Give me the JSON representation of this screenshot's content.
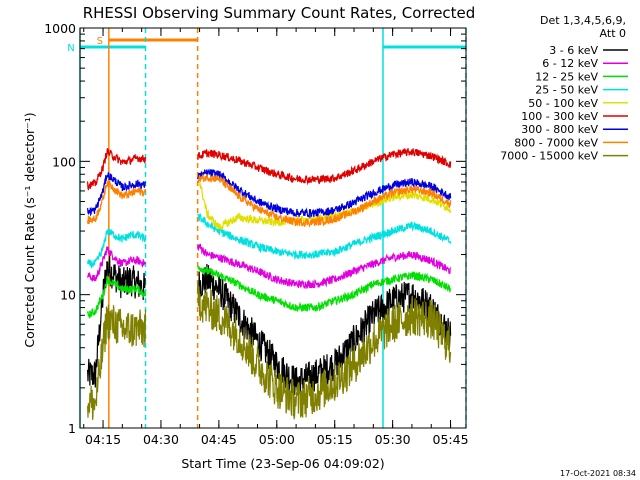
{
  "title": "RHESSI Observing Summary Count Rates, Corrected",
  "footer_date": "17-Oct-2021 08:34",
  "legend_header": [
    "Det 1,3,4,5,6,9,",
    "Att 0"
  ],
  "chart_data": {
    "type": "line",
    "title": "RHESSI Observing Summary Count Rates, Corrected",
    "xlabel": "Start Time (23-Sep-06 04:09:02)",
    "ylabel": "Corrected Count Rate (s⁻¹ detector⁻¹)",
    "yscale": "log",
    "ylim": [
      1,
      1000
    ],
    "xlim": [
      "04:09:02",
      "05:49:00"
    ],
    "x_ticks": [
      "04:15",
      "04:30",
      "04:45",
      "05:00",
      "05:15",
      "05:30",
      "05:45"
    ],
    "y_ticks": [
      "1",
      "10",
      "100",
      "1000"
    ],
    "grid": false,
    "legend_position": "right",
    "data_gap": [
      "04:26:00",
      "04:39:30"
    ],
    "series": [
      {
        "name": "3 - 6 keV",
        "color": "#000000",
        "points": [
          [
            "04:11",
            2.5
          ],
          [
            "04:13",
            2.5
          ],
          [
            "04:15",
            10
          ],
          [
            "04:16",
            16
          ],
          [
            "04:18",
            14
          ],
          [
            "04:20",
            12
          ],
          [
            "04:22",
            13
          ],
          [
            "04:24",
            12
          ],
          [
            "04:26",
            11
          ],
          [
            "04:40",
            12
          ],
          [
            "04:42",
            13
          ],
          [
            "04:45",
            11
          ],
          [
            "04:50",
            7
          ],
          [
            "04:55",
            4.5
          ],
          [
            "05:00",
            3
          ],
          [
            "05:05",
            2.2
          ],
          [
            "05:10",
            2.5
          ],
          [
            "05:15",
            3
          ],
          [
            "05:20",
            4.5
          ],
          [
            "05:25",
            7
          ],
          [
            "05:30",
            9
          ],
          [
            "05:35",
            10
          ],
          [
            "05:40",
            8
          ],
          [
            "05:45",
            5
          ]
        ]
      },
      {
        "name": "6 - 12 keV",
        "color": "#e000e0",
        "points": [
          [
            "04:11",
            14
          ],
          [
            "04:13",
            13
          ],
          [
            "04:15",
            18
          ],
          [
            "04:16",
            22
          ],
          [
            "04:18",
            19
          ],
          [
            "04:20",
            17
          ],
          [
            "04:22",
            18
          ],
          [
            "04:24",
            18
          ],
          [
            "04:26",
            17
          ],
          [
            "04:40",
            23
          ],
          [
            "04:42",
            20
          ],
          [
            "04:45",
            19
          ],
          [
            "04:50",
            17
          ],
          [
            "04:55",
            15
          ],
          [
            "05:00",
            13
          ],
          [
            "05:05",
            12
          ],
          [
            "05:10",
            12
          ],
          [
            "05:15",
            13
          ],
          [
            "05:20",
            15
          ],
          [
            "05:25",
            17
          ],
          [
            "05:30",
            19
          ],
          [
            "05:35",
            20
          ],
          [
            "05:40",
            18
          ],
          [
            "05:45",
            15
          ]
        ]
      },
      {
        "name": "12 - 25 keV",
        "color": "#00e000",
        "points": [
          [
            "04:11",
            7
          ],
          [
            "04:13",
            7.5
          ],
          [
            "04:15",
            10
          ],
          [
            "04:16",
            13
          ],
          [
            "04:18",
            12
          ],
          [
            "04:20",
            11
          ],
          [
            "04:22",
            11
          ],
          [
            "04:24",
            11
          ],
          [
            "04:26",
            10
          ],
          [
            "04:40",
            16
          ],
          [
            "04:42",
            15
          ],
          [
            "04:45",
            14
          ],
          [
            "04:50",
            12
          ],
          [
            "04:55",
            10
          ],
          [
            "05:00",
            9
          ],
          [
            "05:05",
            8
          ],
          [
            "05:10",
            8
          ],
          [
            "05:15",
            9
          ],
          [
            "05:20",
            10
          ],
          [
            "05:25",
            12
          ],
          [
            "05:30",
            13
          ],
          [
            "05:35",
            14
          ],
          [
            "05:40",
            13
          ],
          [
            "05:45",
            11
          ]
        ]
      },
      {
        "name": "25 - 50 keV",
        "color": "#00e0e0",
        "points": [
          [
            "04:11",
            17
          ],
          [
            "04:13",
            17
          ],
          [
            "04:15",
            22
          ],
          [
            "04:16",
            30
          ],
          [
            "04:18",
            28
          ],
          [
            "04:20",
            26
          ],
          [
            "04:22",
            28
          ],
          [
            "04:24",
            28
          ],
          [
            "04:26",
            26
          ],
          [
            "04:40",
            38
          ],
          [
            "04:42",
            34
          ],
          [
            "04:45",
            30
          ],
          [
            "04:50",
            26
          ],
          [
            "04:55",
            23
          ],
          [
            "05:00",
            21
          ],
          [
            "05:05",
            20
          ],
          [
            "05:10",
            20
          ],
          [
            "05:15",
            21
          ],
          [
            "05:20",
            24
          ],
          [
            "05:25",
            27
          ],
          [
            "05:30",
            30
          ],
          [
            "05:35",
            33
          ],
          [
            "05:40",
            30
          ],
          [
            "05:45",
            25
          ]
        ]
      },
      {
        "name": "50 - 100 keV",
        "color": "#e0e000",
        "points": [
          [
            "04:40",
            70
          ],
          [
            "04:42",
            40
          ],
          [
            "04:45",
            32
          ],
          [
            "04:50",
            38
          ],
          [
            "04:55",
            36
          ],
          [
            "05:00",
            35
          ],
          [
            "05:05",
            36
          ],
          [
            "05:10",
            37
          ],
          [
            "05:15",
            39
          ],
          [
            "05:20",
            42
          ],
          [
            "05:25",
            48
          ],
          [
            "05:30",
            54
          ],
          [
            "05:35",
            56
          ],
          [
            "05:40",
            52
          ],
          [
            "05:45",
            44
          ]
        ]
      },
      {
        "name": "100 - 300 keV",
        "color": "#e00000",
        "points": [
          [
            "04:11",
            66
          ],
          [
            "04:13",
            68
          ],
          [
            "04:15",
            90
          ],
          [
            "04:16",
            118
          ],
          [
            "04:18",
            108
          ],
          [
            "04:20",
            98
          ],
          [
            "04:22",
            102
          ],
          [
            "04:24",
            106
          ],
          [
            "04:26",
            104
          ],
          [
            "04:40",
            110
          ],
          [
            "04:42",
            115
          ],
          [
            "04:45",
            112
          ],
          [
            "04:50",
            102
          ],
          [
            "04:55",
            90
          ],
          [
            "05:00",
            80
          ],
          [
            "05:05",
            74
          ],
          [
            "05:10",
            73
          ],
          [
            "05:15",
            75
          ],
          [
            "05:20",
            85
          ],
          [
            "05:25",
            100
          ],
          [
            "05:30",
            113
          ],
          [
            "05:35",
            118
          ],
          [
            "05:40",
            110
          ],
          [
            "05:45",
            95
          ]
        ]
      },
      {
        "name": "300 - 800 keV",
        "color": "#0000e0",
        "points": [
          [
            "04:11",
            42
          ],
          [
            "04:13",
            43
          ],
          [
            "04:15",
            60
          ],
          [
            "04:16",
            80
          ],
          [
            "04:18",
            72
          ],
          [
            "04:20",
            64
          ],
          [
            "04:22",
            66
          ],
          [
            "04:24",
            68
          ],
          [
            "04:26",
            66
          ],
          [
            "04:40",
            78
          ],
          [
            "04:42",
            82
          ],
          [
            "04:45",
            80
          ],
          [
            "04:50",
            62
          ],
          [
            "04:55",
            50
          ],
          [
            "05:00",
            44
          ],
          [
            "05:05",
            41
          ],
          [
            "05:10",
            41
          ],
          [
            "05:15",
            43
          ],
          [
            "05:20",
            49
          ],
          [
            "05:25",
            58
          ],
          [
            "05:30",
            66
          ],
          [
            "05:35",
            70
          ],
          [
            "05:40",
            65
          ],
          [
            "05:45",
            54
          ]
        ]
      },
      {
        "name": "800 - 7000 keV",
        "color": "#ff8000",
        "points": [
          [
            "04:11",
            36
          ],
          [
            "04:13",
            37
          ],
          [
            "04:15",
            52
          ],
          [
            "04:16",
            70
          ],
          [
            "04:18",
            62
          ],
          [
            "04:20",
            55
          ],
          [
            "04:22",
            57
          ],
          [
            "04:24",
            60
          ],
          [
            "04:26",
            58
          ],
          [
            "04:40",
            74
          ],
          [
            "04:42",
            76
          ],
          [
            "04:45",
            74
          ],
          [
            "04:50",
            55
          ],
          [
            "04:55",
            44
          ],
          [
            "05:00",
            38
          ],
          [
            "05:05",
            35
          ],
          [
            "05:10",
            35
          ],
          [
            "05:15",
            37
          ],
          [
            "05:20",
            42
          ],
          [
            "05:25",
            50
          ],
          [
            "05:30",
            58
          ],
          [
            "05:35",
            62
          ],
          [
            "05:40",
            58
          ],
          [
            "05:45",
            48
          ]
        ]
      },
      {
        "name": "7000 - 15000 keV",
        "color": "#808000",
        "points": [
          [
            "04:11",
            1.6
          ],
          [
            "04:13",
            1.5
          ],
          [
            "04:15",
            4
          ],
          [
            "04:16",
            6.5
          ],
          [
            "04:18",
            6
          ],
          [
            "04:20",
            5.5
          ],
          [
            "04:22",
            5.5
          ],
          [
            "04:24",
            5.5
          ],
          [
            "04:26",
            5.5
          ],
          [
            "04:40",
            9
          ],
          [
            "04:42",
            8
          ],
          [
            "04:45",
            7
          ],
          [
            "04:50",
            5
          ],
          [
            "04:55",
            3
          ],
          [
            "05:00",
            2
          ],
          [
            "05:05",
            1.6
          ],
          [
            "05:10",
            1.8
          ],
          [
            "05:15",
            2.2
          ],
          [
            "05:20",
            3
          ],
          [
            "05:25",
            4.5
          ],
          [
            "05:30",
            6
          ],
          [
            "05:35",
            7
          ],
          [
            "05:40",
            6.5
          ],
          [
            "05:45",
            4
          ]
        ]
      }
    ],
    "annotations": [
      {
        "label": "S",
        "type": "bar",
        "color": "#ff8000",
        "from": "04:16:30",
        "to": "04:39:30"
      },
      {
        "label": "N",
        "type": "bar",
        "color": "#00e0e0",
        "from": "04:09:02",
        "to": "04:26:00"
      },
      {
        "label": "",
        "type": "bar",
        "color": "#00e0e0",
        "from": "05:27:30",
        "to": "05:49:00"
      }
    ],
    "vertical_lines": [
      {
        "time": "04:09:02",
        "color": "#00e0e0",
        "style": "solid"
      },
      {
        "time": "04:16:30",
        "color": "#ff8000",
        "style": "solid"
      },
      {
        "time": "04:26:00",
        "color": "#00e0e0",
        "style": "dashed"
      },
      {
        "time": "04:39:30",
        "color": "#ff8000",
        "style": "dashed"
      },
      {
        "time": "05:27:30",
        "color": "#00e0e0",
        "style": "solid"
      },
      {
        "time": "05:49:00",
        "color": "#00e0e0",
        "style": "dashed"
      }
    ]
  }
}
